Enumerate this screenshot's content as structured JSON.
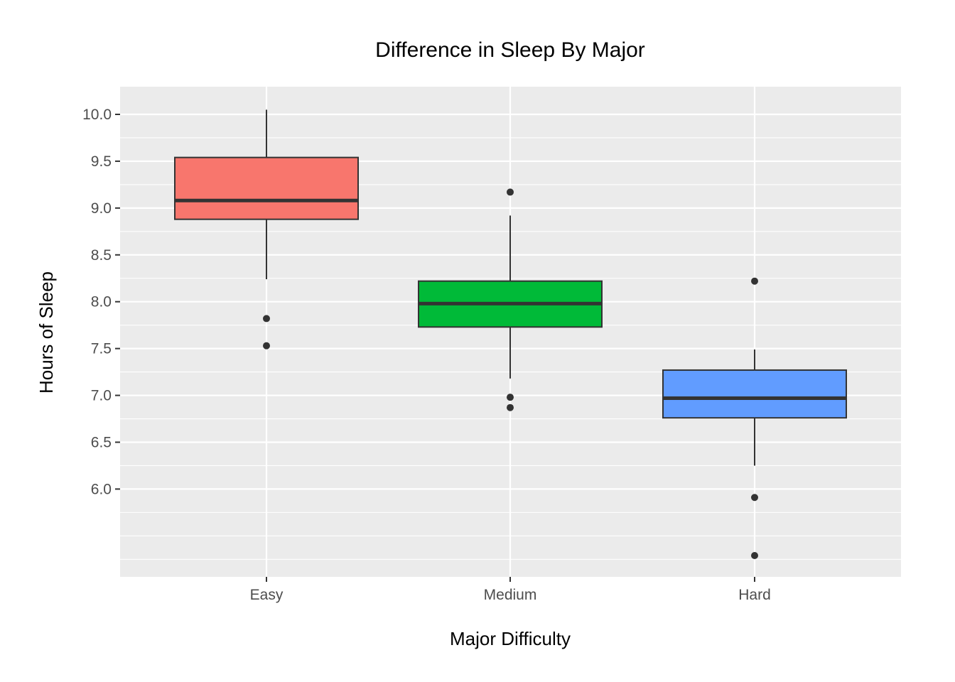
{
  "chart_data": {
    "type": "boxplot",
    "title": "Difference in Sleep By Major",
    "xlabel": "Major Difficulty",
    "ylabel": "Hours of Sleep",
    "ylim": [
      5.1,
      10.3
    ],
    "yticks": [
      "10.0",
      "9.5",
      "9.0",
      "8.5",
      "8.0",
      "7.5",
      "7.0",
      "6.5",
      "6.0"
    ],
    "grid": true,
    "legend": "none",
    "categories": [
      "Easy",
      "Medium",
      "Hard"
    ],
    "boxes": [
      {
        "category": "Easy",
        "whisker_low": 8.24,
        "q1": 8.88,
        "median": 9.08,
        "q3": 9.54,
        "whisker_high": 10.05,
        "outliers": [
          7.82,
          7.53
        ],
        "color": "#F8766D"
      },
      {
        "category": "Medium",
        "whisker_low": 7.18,
        "q1": 7.73,
        "median": 7.98,
        "q3": 8.22,
        "whisker_high": 8.92,
        "outliers": [
          9.17,
          6.98,
          6.87
        ],
        "color": "#00BA38"
      },
      {
        "category": "Hard",
        "whisker_low": 6.25,
        "q1": 6.76,
        "median": 6.97,
        "q3": 7.27,
        "whisker_high": 7.49,
        "outliers": [
          8.22,
          5.91,
          5.29
        ],
        "color": "#619CFF"
      }
    ]
  }
}
